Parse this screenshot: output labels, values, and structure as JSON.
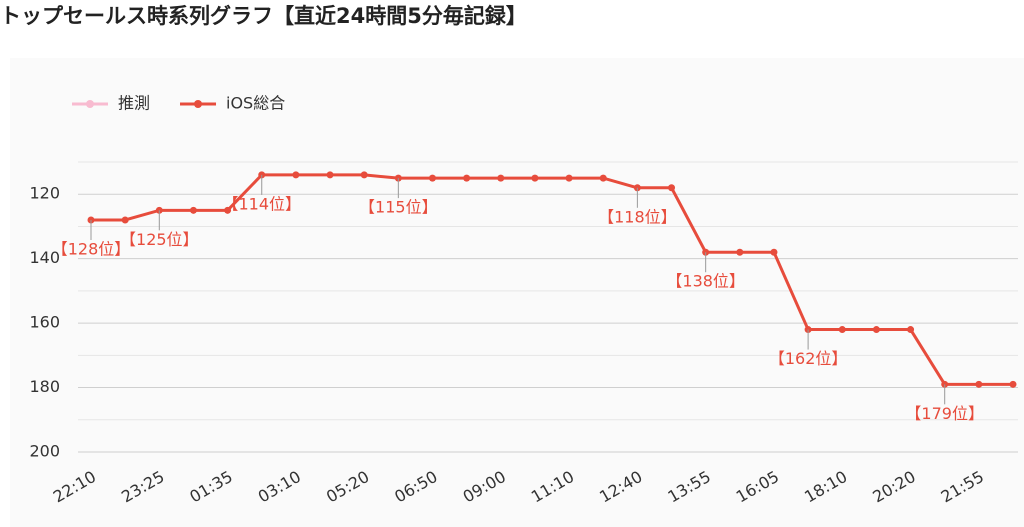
{
  "chart_data": {
    "type": "line",
    "title": "トップセールス時系列グラフ【直近24時間5分毎記録】",
    "categories": [
      "22:10",
      null,
      "23:25",
      null,
      "01:35",
      null,
      "03:10",
      null,
      "05:20",
      null,
      "06:50",
      null,
      "09:00",
      null,
      "11:10",
      null,
      "12:40",
      null,
      "13:55",
      null,
      "16:05",
      null,
      "18:10",
      null,
      "20:20",
      null,
      "21:55",
      null
    ],
    "series": [
      {
        "name": "推測",
        "color": "#f8bbd0",
        "values": [
          null,
          null,
          null,
          null,
          null,
          null,
          null,
          null,
          null,
          null,
          null,
          null,
          null,
          null,
          null,
          null,
          null,
          null,
          null,
          null,
          null,
          null,
          null,
          null,
          null,
          null,
          null,
          null
        ]
      },
      {
        "name": "iOS総合",
        "color": "#e74c3c",
        "values": [
          128,
          128,
          125,
          125,
          125,
          114,
          114,
          114,
          114,
          115,
          115,
          115,
          115,
          115,
          115,
          115,
          118,
          118,
          138,
          138,
          138,
          162,
          162,
          162,
          162,
          179,
          179,
          179
        ],
        "value_labels": [
          "【128位】",
          null,
          "【125位】",
          null,
          null,
          "【114位】",
          null,
          null,
          null,
          "【115位】",
          null,
          null,
          null,
          null,
          null,
          null,
          "【118位】",
          null,
          "【138位】",
          null,
          null,
          "【162位】",
          null,
          null,
          null,
          "【179位】",
          null,
          null
        ]
      }
    ],
    "ylim": [
      110,
      200
    ],
    "inverted": true,
    "yticks": [
      120,
      140,
      160,
      180,
      200
    ],
    "minor_yticks": [
      110,
      130,
      150,
      170,
      190
    ],
    "grid": true
  }
}
